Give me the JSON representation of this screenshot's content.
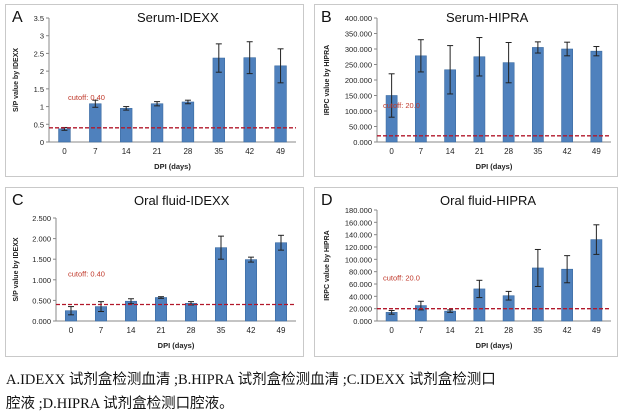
{
  "chart_data": [
    {
      "panel": "A",
      "type": "bar",
      "title": "Serum-IDEXX",
      "xlabel": "DPI (days)",
      "ylabel": "S/P value by IDEXX",
      "categories": [
        "0",
        "7",
        "14",
        "21",
        "28",
        "35",
        "42",
        "49"
      ],
      "values": [
        0.37,
        1.08,
        0.95,
        1.08,
        1.13,
        2.37,
        2.38,
        2.15
      ],
      "errors": [
        0.04,
        0.1,
        0.05,
        0.06,
        0.05,
        0.4,
        0.45,
        0.48
      ],
      "ylim": [
        0,
        3.5
      ],
      "yticks": [
        "0",
        "0.5",
        "1",
        "1.5",
        "2",
        "2.5",
        "3",
        "3.5"
      ],
      "cutoff_value": 0.4,
      "cutoff_label": "cutoff: 0.40"
    },
    {
      "panel": "B",
      "type": "bar",
      "title": "Serum-HIPRA",
      "xlabel": "DPI (days)",
      "ylabel": "IRPC value by HIPRA",
      "categories": [
        "0",
        "7",
        "14",
        "21",
        "28",
        "35",
        "42",
        "49"
      ],
      "values": [
        150,
        278,
        233,
        275,
        256,
        305,
        300,
        293
      ],
      "errors": [
        70,
        52,
        78,
        62,
        65,
        18,
        22,
        15
      ],
      "ylim": [
        0,
        400
      ],
      "yticks": [
        "0.000",
        "50.000",
        "100.000",
        "150.000",
        "200.000",
        "250.000",
        "300.000",
        "350.000",
        "400.000"
      ],
      "cutoff_value": 20,
      "cutoff_label": "cutoff: 20.0"
    },
    {
      "panel": "C",
      "type": "bar",
      "title": "Oral fluid-IDEXX",
      "xlabel": "DPI (days)",
      "ylabel": "S/P value by IDEXX",
      "categories": [
        "0",
        "7",
        "14",
        "21",
        "28",
        "35",
        "42",
        "49"
      ],
      "values": [
        0.25,
        0.35,
        0.48,
        0.57,
        0.43,
        1.78,
        1.49,
        1.9
      ],
      "errors": [
        0.1,
        0.12,
        0.06,
        0.02,
        0.04,
        0.28,
        0.06,
        0.18
      ],
      "ylim": [
        0,
        2.5
      ],
      "yticks": [
        "0.000",
        "0.500",
        "1.000",
        "1.500",
        "2.000",
        "2.500"
      ],
      "cutoff_value": 0.4,
      "cutoff_label": "cutoff: 0.40"
    },
    {
      "panel": "D",
      "type": "bar",
      "title": "Oral fluid-HIPRA",
      "xlabel": "DPI (days)",
      "ylabel": "IRPC value by HIPRA",
      "categories": [
        "0",
        "7",
        "14",
        "21",
        "28",
        "35",
        "42",
        "49"
      ],
      "values": [
        14,
        25,
        16,
        52,
        41,
        86,
        84,
        132
      ],
      "errors": [
        3,
        7,
        2,
        14,
        7,
        30,
        22,
        24
      ],
      "ylim": [
        0,
        180
      ],
      "yticks": [
        "0.000",
        "20.000",
        "40.000",
        "60.000",
        "80.000",
        "100.000",
        "120.000",
        "140.000",
        "160.000",
        "180.000"
      ],
      "cutoff_value": 20,
      "cutoff_label": "cutoff: 20.0"
    }
  ],
  "caption": {
    "line1": "A.IDEXX 试剂盒检测血清 ;B.HIPRA 试剂盒检测血清 ;C.IDEXX 试剂盒检测口",
    "line2": "腔液 ;D.HIPRA 试剂盒检测口腔液。"
  },
  "colors": {
    "bar": "#4f81bd",
    "bar_edge": "#3a6aa0",
    "cutoff_line": "#b2182b",
    "cutoff_text": "#c0392b",
    "error_bar": "#222222"
  }
}
